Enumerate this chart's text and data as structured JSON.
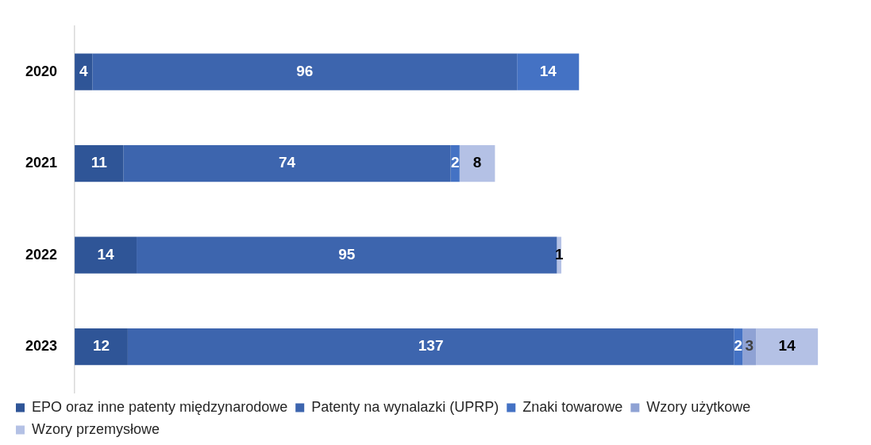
{
  "chart_data": {
    "type": "bar",
    "orientation": "horizontal",
    "stacked": true,
    "data_labels": true,
    "grid": false,
    "legend": "bottom",
    "categories": [
      "2020",
      "2021",
      "2022",
      "2023"
    ],
    "series": [
      {
        "name": "EPO oraz inne patenty międzynarodowe",
        "color": "#2f5597",
        "values": [
          4,
          11,
          14,
          12
        ]
      },
      {
        "name": "Patenty na wynalazki (UPRP)",
        "color": "#3d65ae",
        "values": [
          96,
          74,
          95,
          137
        ]
      },
      {
        "name": "Znaki towarowe",
        "color": "#4472c4",
        "values": [
          14,
          2,
          null,
          2
        ]
      },
      {
        "name": "Wzory użytkowe",
        "color": "#8fa2d4",
        "values": [
          null,
          null,
          null,
          3
        ]
      },
      {
        "name": "Wzory przemysłowe",
        "color": "#b4c1e5",
        "values": [
          null,
          8,
          1,
          14
        ]
      }
    ]
  }
}
